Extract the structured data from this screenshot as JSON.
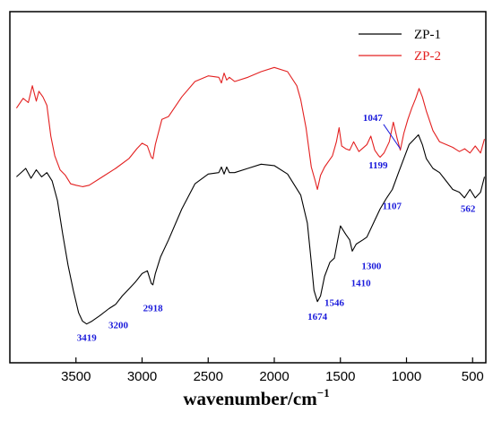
{
  "chart_data": {
    "type": "line",
    "xlabel": "wavenumber/cm",
    "xlabel_sup": "−1",
    "x_ticks": [
      3500,
      3000,
      2500,
      2000,
      1500,
      1000,
      500
    ],
    "xlim": [
      4000,
      400
    ],
    "ylim": [
      0,
      1
    ],
    "y_ticks_shown": false,
    "grid": false,
    "legend_position": "top-right",
    "series": [
      {
        "name": "ZP-1",
        "color": "#000000",
        "points": [
          [
            3950,
            0.545
          ],
          [
            3880,
            0.575
          ],
          [
            3840,
            0.54
          ],
          [
            3800,
            0.57
          ],
          [
            3760,
            0.545
          ],
          [
            3720,
            0.56
          ],
          [
            3680,
            0.53
          ],
          [
            3640,
            0.46
          ],
          [
            3600,
            0.34
          ],
          [
            3560,
            0.23
          ],
          [
            3520,
            0.14
          ],
          [
            3480,
            0.06
          ],
          [
            3450,
            0.03
          ],
          [
            3419,
            0.02
          ],
          [
            3380,
            0.03
          ],
          [
            3320,
            0.05
          ],
          [
            3250,
            0.075
          ],
          [
            3200,
            0.09
          ],
          [
            3150,
            0.12
          ],
          [
            3100,
            0.145
          ],
          [
            3050,
            0.17
          ],
          [
            3000,
            0.2
          ],
          [
            2960,
            0.21
          ],
          [
            2930,
            0.165
          ],
          [
            2918,
            0.16
          ],
          [
            2900,
            0.2
          ],
          [
            2860,
            0.26
          ],
          [
            2800,
            0.32
          ],
          [
            2700,
            0.43
          ],
          [
            2600,
            0.52
          ],
          [
            2500,
            0.555
          ],
          [
            2420,
            0.56
          ],
          [
            2400,
            0.58
          ],
          [
            2380,
            0.555
          ],
          [
            2360,
            0.58
          ],
          [
            2340,
            0.56
          ],
          [
            2300,
            0.56
          ],
          [
            2200,
            0.575
          ],
          [
            2100,
            0.59
          ],
          [
            2000,
            0.585
          ],
          [
            1900,
            0.555
          ],
          [
            1800,
            0.48
          ],
          [
            1750,
            0.38
          ],
          [
            1720,
            0.24
          ],
          [
            1700,
            0.14
          ],
          [
            1674,
            0.1
          ],
          [
            1650,
            0.12
          ],
          [
            1620,
            0.19
          ],
          [
            1580,
            0.24
          ],
          [
            1546,
            0.255
          ],
          [
            1520,
            0.32
          ],
          [
            1500,
            0.37
          ],
          [
            1460,
            0.34
          ],
          [
            1430,
            0.32
          ],
          [
            1410,
            0.28
          ],
          [
            1380,
            0.305
          ],
          [
            1330,
            0.32
          ],
          [
            1300,
            0.33
          ],
          [
            1250,
            0.38
          ],
          [
            1200,
            0.43
          ],
          [
            1150,
            0.47
          ],
          [
            1107,
            0.5
          ],
          [
            1060,
            0.56
          ],
          [
            1020,
            0.61
          ],
          [
            980,
            0.66
          ],
          [
            940,
            0.68
          ],
          [
            910,
            0.695
          ],
          [
            880,
            0.66
          ],
          [
            850,
            0.61
          ],
          [
            800,
            0.575
          ],
          [
            750,
            0.56
          ],
          [
            700,
            0.53
          ],
          [
            650,
            0.5
          ],
          [
            600,
            0.49
          ],
          [
            562,
            0.47
          ],
          [
            520,
            0.5
          ],
          [
            480,
            0.47
          ],
          [
            440,
            0.49
          ],
          [
            410,
            0.545
          ]
        ]
      },
      {
        "name": "ZP-2",
        "color": "#e32020",
        "points": [
          [
            3950,
            0.79
          ],
          [
            3900,
            0.825
          ],
          [
            3860,
            0.81
          ],
          [
            3830,
            0.87
          ],
          [
            3800,
            0.815
          ],
          [
            3780,
            0.85
          ],
          [
            3750,
            0.83
          ],
          [
            3720,
            0.8
          ],
          [
            3690,
            0.69
          ],
          [
            3660,
            0.62
          ],
          [
            3620,
            0.57
          ],
          [
            3580,
            0.55
          ],
          [
            3540,
            0.52
          ],
          [
            3500,
            0.515
          ],
          [
            3450,
            0.51
          ],
          [
            3400,
            0.515
          ],
          [
            3300,
            0.545
          ],
          [
            3200,
            0.575
          ],
          [
            3100,
            0.61
          ],
          [
            3040,
            0.645
          ],
          [
            3000,
            0.665
          ],
          [
            2960,
            0.655
          ],
          [
            2930,
            0.615
          ],
          [
            2918,
            0.61
          ],
          [
            2900,
            0.66
          ],
          [
            2850,
            0.75
          ],
          [
            2800,
            0.76
          ],
          [
            2700,
            0.83
          ],
          [
            2600,
            0.885
          ],
          [
            2500,
            0.905
          ],
          [
            2420,
            0.9
          ],
          [
            2400,
            0.88
          ],
          [
            2380,
            0.915
          ],
          [
            2360,
            0.89
          ],
          [
            2340,
            0.9
          ],
          [
            2300,
            0.885
          ],
          [
            2200,
            0.9
          ],
          [
            2100,
            0.92
          ],
          [
            2000,
            0.935
          ],
          [
            1900,
            0.92
          ],
          [
            1830,
            0.87
          ],
          [
            1800,
            0.82
          ],
          [
            1760,
            0.72
          ],
          [
            1720,
            0.58
          ],
          [
            1690,
            0.53
          ],
          [
            1674,
            0.5
          ],
          [
            1650,
            0.55
          ],
          [
            1620,
            0.58
          ],
          [
            1590,
            0.6
          ],
          [
            1560,
            0.62
          ],
          [
            1530,
            0.67
          ],
          [
            1510,
            0.72
          ],
          [
            1490,
            0.655
          ],
          [
            1460,
            0.645
          ],
          [
            1430,
            0.64
          ],
          [
            1400,
            0.67
          ],
          [
            1360,
            0.635
          ],
          [
            1300,
            0.66
          ],
          [
            1270,
            0.69
          ],
          [
            1240,
            0.64
          ],
          [
            1210,
            0.62
          ],
          [
            1199,
            0.615
          ],
          [
            1170,
            0.63
          ],
          [
            1130,
            0.67
          ],
          [
            1100,
            0.74
          ],
          [
            1070,
            0.68
          ],
          [
            1047,
            0.64
          ],
          [
            1020,
            0.7
          ],
          [
            990,
            0.75
          ],
          [
            960,
            0.79
          ],
          [
            930,
            0.825
          ],
          [
            905,
            0.86
          ],
          [
            880,
            0.83
          ],
          [
            850,
            0.78
          ],
          [
            800,
            0.71
          ],
          [
            750,
            0.67
          ],
          [
            700,
            0.66
          ],
          [
            650,
            0.65
          ],
          [
            600,
            0.635
          ],
          [
            560,
            0.645
          ],
          [
            520,
            0.63
          ],
          [
            480,
            0.655
          ],
          [
            440,
            0.63
          ],
          [
            410,
            0.68
          ]
        ]
      }
    ],
    "annotations": [
      {
        "label": "3419",
        "x": 3419,
        "y": -0.04
      },
      {
        "label": "3200",
        "x": 3180,
        "y": 0.005
      },
      {
        "label": "2918",
        "x": 2918,
        "y": 0.065
      },
      {
        "label": "1674",
        "x": 1674,
        "y": 0.035
      },
      {
        "label": "1546",
        "x": 1546,
        "y": 0.085
      },
      {
        "label": "1410",
        "x": 1345,
        "y": 0.155
      },
      {
        "label": "1300",
        "x": 1265,
        "y": 0.215
      },
      {
        "label": "1107",
        "x": 1110,
        "y": 0.43
      },
      {
        "label": "562",
        "x": 535,
        "y": 0.42
      },
      {
        "label": "1199",
        "x": 1215,
        "y": 0.575
      },
      {
        "label": "1047",
        "x": 1255,
        "y": 0.745,
        "arrow_to": [
          1047,
          0.645
        ]
      }
    ]
  }
}
